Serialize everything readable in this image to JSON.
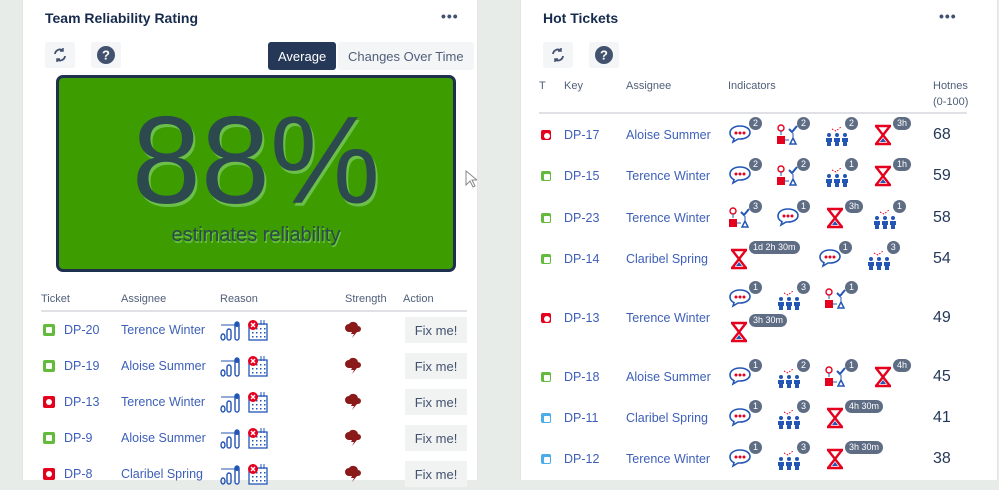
{
  "left_panel": {
    "title": "Team Reliability Rating",
    "menu": "•••",
    "refresh_icon": "refresh-icon",
    "help_icon": "help-icon",
    "toggle": {
      "options": [
        "Average",
        "Changes Over Time"
      ],
      "selected": "Average"
    },
    "rating": {
      "value": "88%",
      "label": "estimates reliability",
      "percent": 88,
      "color": "#3c9c00"
    },
    "table": {
      "headers": [
        "Ticket",
        "Assignee",
        "Reason",
        "Strength",
        "Action"
      ],
      "rows": [
        {
          "type": "story",
          "key": "DP-20",
          "assignee": "Terence Winter",
          "reasons": [
            "estimate-chart-icon",
            "calendar-error-icon"
          ],
          "strength": "storm-icon",
          "action": "Fix me!"
        },
        {
          "type": "story",
          "key": "DP-19",
          "assignee": "Aloise Summer",
          "reasons": [
            "estimate-chart-icon",
            "calendar-error-icon"
          ],
          "strength": "storm-icon",
          "action": "Fix me!"
        },
        {
          "type": "bug",
          "key": "DP-13",
          "assignee": "Terence Winter",
          "reasons": [
            "estimate-chart-icon",
            "calendar-error-icon"
          ],
          "strength": "storm-icon",
          "action": "Fix me!"
        },
        {
          "type": "story",
          "key": "DP-9",
          "assignee": "Aloise Summer",
          "reasons": [
            "estimate-chart-icon",
            "calendar-error-icon"
          ],
          "strength": "storm-icon",
          "action": "Fix me!"
        },
        {
          "type": "bug",
          "key": "DP-8",
          "assignee": "Claribel Spring",
          "reasons": [
            "estimate-chart-icon",
            "calendar-error-icon"
          ],
          "strength": "storm-icon",
          "action": "Fix me!"
        }
      ]
    }
  },
  "right_panel": {
    "title": "Hot Tickets",
    "menu": "•••",
    "refresh_icon": "refresh-icon",
    "help_icon": "help-icon",
    "table": {
      "headers": {
        "t": "T",
        "key": "Key",
        "assignee": "Assignee",
        "indicators": "Indicators",
        "hotness": "Hotnes",
        "hotness_range": "(0-100)"
      },
      "rows": [
        {
          "type": "bug",
          "key": "DP-17",
          "assignee": "Aloise Summer",
          "hotness": "68",
          "indicators": [
            {
              "icon": "comment",
              "badge": "2"
            },
            {
              "icon": "workflow",
              "badge": "2"
            },
            {
              "icon": "people",
              "badge": "2"
            },
            {
              "icon": "hourglass",
              "badge": "3h"
            }
          ]
        },
        {
          "type": "story",
          "key": "DP-15",
          "assignee": "Terence Winter",
          "hotness": "59",
          "indicators": [
            {
              "icon": "comment",
              "badge": "2"
            },
            {
              "icon": "workflow",
              "badge": "2"
            },
            {
              "icon": "people",
              "badge": "1"
            },
            {
              "icon": "hourglass",
              "badge": "1h"
            }
          ]
        },
        {
          "type": "story",
          "key": "DP-23",
          "assignee": "Terence Winter",
          "hotness": "58",
          "indicators": [
            {
              "icon": "workflow",
              "badge": "3"
            },
            {
              "icon": "comment",
              "badge": "1"
            },
            {
              "icon": "hourglass",
              "badge": "3h"
            },
            {
              "icon": "people",
              "badge": "1"
            }
          ]
        },
        {
          "type": "story",
          "key": "DP-14",
          "assignee": "Claribel Spring",
          "hotness": "54",
          "indicators": [
            {
              "icon": "hourglass",
              "badge": "1d 2h 30m"
            },
            {
              "icon": "comment",
              "badge": "1"
            },
            {
              "icon": "people",
              "badge": "3"
            }
          ]
        },
        {
          "type": "bug",
          "key": "DP-13",
          "assignee": "Terence Winter",
          "hotness": "49",
          "indicators": [
            {
              "icon": "comment",
              "badge": "1"
            },
            {
              "icon": "people",
              "badge": "3"
            },
            {
              "icon": "workflow",
              "badge": "1"
            },
            {
              "icon": "hourglass",
              "badge": "3h 30m"
            }
          ]
        },
        {
          "type": "story",
          "key": "DP-18",
          "assignee": "Aloise Summer",
          "hotness": "45",
          "indicators": [
            {
              "icon": "comment",
              "badge": "1"
            },
            {
              "icon": "people",
              "badge": "2"
            },
            {
              "icon": "workflow",
              "badge": "1"
            },
            {
              "icon": "hourglass",
              "badge": "4h"
            }
          ]
        },
        {
          "type": "task",
          "key": "DP-11",
          "assignee": "Claribel Spring",
          "hotness": "41",
          "indicators": [
            {
              "icon": "comment",
              "badge": "1"
            },
            {
              "icon": "people",
              "badge": "3"
            },
            {
              "icon": "hourglass",
              "badge": "4h 30m"
            }
          ]
        },
        {
          "type": "task",
          "key": "DP-12",
          "assignee": "Terence Winter",
          "hotness": "38",
          "indicators": [
            {
              "icon": "comment",
              "badge": "1"
            },
            {
              "icon": "people",
              "badge": "3"
            },
            {
              "icon": "hourglass",
              "badge": "3h 30m"
            }
          ]
        }
      ]
    }
  }
}
